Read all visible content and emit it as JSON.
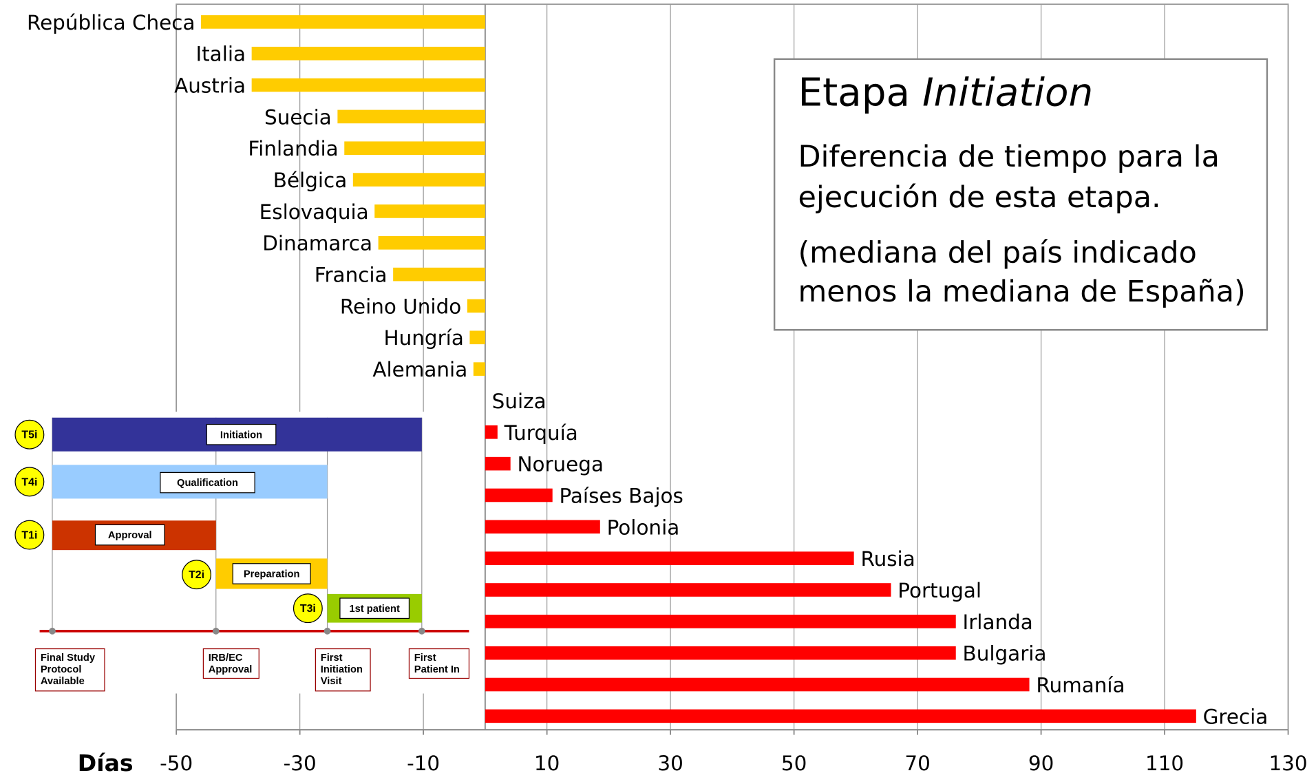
{
  "chart_data": {
    "type": "bar",
    "orientation": "horizontal",
    "categories": [
      "República Checa",
      "Italia",
      "Austria",
      "Suecia",
      "Finlandia",
      "Bélgica",
      "Eslovaquia",
      "Dinamarca",
      "Francia",
      "Reino Unido",
      "Hungría",
      "Alemania",
      "Suiza",
      "Turquía",
      "Noruega",
      "Países Bajos",
      "Polonia",
      "Rusia",
      "Portugal",
      "Irlanda",
      "Bulgaria",
      "Rumanía",
      "Grecia"
    ],
    "values": [
      -46.0,
      -37.8,
      -37.8,
      -23.9,
      -22.8,
      -21.4,
      -17.9,
      -17.3,
      -14.9,
      -2.9,
      -2.5,
      -1.9,
      0,
      2.0,
      4.1,
      10.9,
      18.6,
      59.7,
      65.7,
      76.2,
      76.2,
      88.1,
      115.1
    ],
    "negative_color": "#ffcc00",
    "positive_color": "#ff0000",
    "xlim": [
      -50,
      130
    ],
    "xticks": [
      -50,
      -30,
      -10,
      10,
      30,
      50,
      70,
      90,
      110,
      130
    ],
    "grid": true,
    "x_label": "Días",
    "annotation": {
      "title": "Etapa",
      "title_italic": "Initiation",
      "lines": [
        "Diferencia de tiempo para la",
        "ejecución de esta etapa.",
        "(mediana del país indicado",
        "menos la mediana de España)"
      ]
    }
  },
  "inset": {
    "phases": [
      {
        "code": "T5i",
        "label": "Initiation"
      },
      {
        "code": "T4i",
        "label": "Qualification"
      },
      {
        "code": "T1i",
        "label": "Approval"
      },
      {
        "code": "T2i",
        "label": "Preparation"
      },
      {
        "code": "T3i",
        "label": "1st patient"
      }
    ],
    "milestones": [
      [
        "Final Study",
        "Protocol",
        "Available"
      ],
      [
        "IRB/EC",
        "Approval"
      ],
      [
        "First",
        "Initiation",
        "Visit"
      ],
      [
        "First",
        "Patient In"
      ]
    ]
  }
}
